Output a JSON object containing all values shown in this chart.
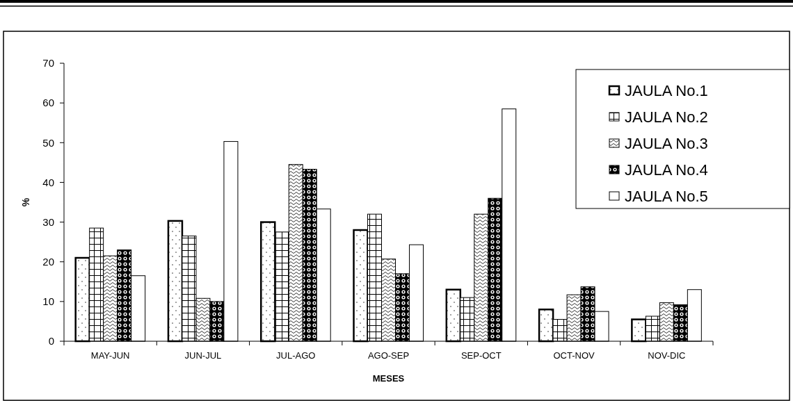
{
  "chart_data": {
    "type": "bar",
    "xlabel": "MESES",
    "ylabel": "%",
    "categories": [
      "MAY-JUN",
      "JUN-JUL",
      "JUL-AGO",
      "AGO-SEP",
      "SEP-OCT",
      "OCT-NOV",
      "NOV-DIC"
    ],
    "series": [
      {
        "name": "JAULA No.1",
        "color": "#000000",
        "values": [
          21,
          30.3,
          30,
          28,
          13,
          8,
          5.5
        ]
      },
      {
        "name": "JAULA No.2",
        "color": "#000000",
        "values": [
          28.5,
          26.5,
          27.5,
          32,
          11,
          5.5,
          6.3
        ]
      },
      {
        "name": "JAULA No.3",
        "color": "#000000",
        "values": [
          21.5,
          10.8,
          44.5,
          20.7,
          32,
          11.7,
          9.7
        ]
      },
      {
        "name": "JAULA No.4",
        "color": "#000000",
        "values": [
          23,
          10,
          43.3,
          17,
          36,
          13.7,
          9.2
        ]
      },
      {
        "name": "JAULA No.5",
        "color": "#000000",
        "values": [
          16.5,
          50.3,
          33.3,
          24.3,
          58.5,
          7.5,
          13
        ]
      }
    ],
    "ylim": [
      0,
      70
    ],
    "yticks": [
      0,
      10,
      20,
      30,
      40,
      50,
      60,
      70
    ],
    "grid": false,
    "legend": "top right"
  }
}
